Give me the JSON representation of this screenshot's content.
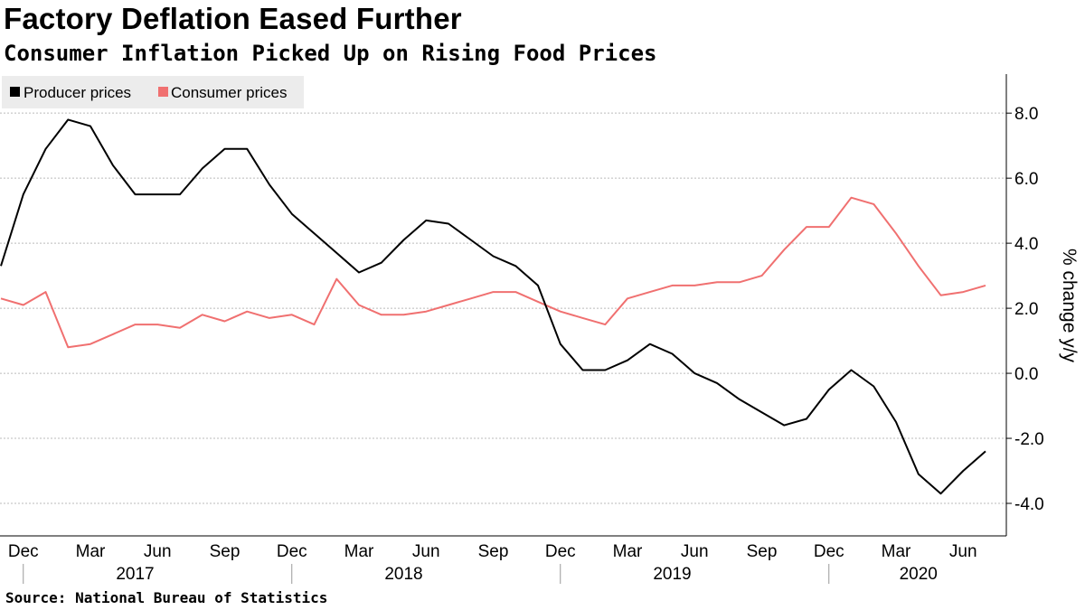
{
  "title": "Factory Deflation Eased Further",
  "subtitle": "Consumer Inflation Picked Up on Rising Food Prices",
  "source": "Source: National Bureau of Statistics",
  "colors": {
    "producer": "#000000",
    "consumer": "#f07070",
    "grid": "#bbbbbb"
  },
  "chart_data": {
    "type": "line",
    "title": "",
    "ylabel": "% change y/y",
    "ylim": [
      -5,
      9.2
    ],
    "yticks": [
      -4.0,
      -2.0,
      0.0,
      2.0,
      4.0,
      6.0,
      8.0
    ],
    "ytick_labels": [
      "-4.0",
      "-2.0",
      "0.0",
      "2.0",
      "4.0",
      "6.0",
      "8.0"
    ],
    "grid": true,
    "legend_position": "top-left",
    "x": [
      "2016-11",
      "2016-12",
      "2017-01",
      "2017-02",
      "2017-03",
      "2017-04",
      "2017-05",
      "2017-06",
      "2017-07",
      "2017-08",
      "2017-09",
      "2017-10",
      "2017-11",
      "2017-12",
      "2018-01",
      "2018-02",
      "2018-03",
      "2018-04",
      "2018-05",
      "2018-06",
      "2018-07",
      "2018-08",
      "2018-09",
      "2018-10",
      "2018-11",
      "2018-12",
      "2019-01",
      "2019-02",
      "2019-03",
      "2019-04",
      "2019-05",
      "2019-06",
      "2019-07",
      "2019-08",
      "2019-09",
      "2019-10",
      "2019-11",
      "2019-12",
      "2020-01",
      "2020-02",
      "2020-03",
      "2020-04",
      "2020-05",
      "2020-06",
      "2020-07"
    ],
    "month_ticks": [
      {
        "label": "Dec",
        "x": "2016-12"
      },
      {
        "label": "Mar",
        "x": "2017-03"
      },
      {
        "label": "Jun",
        "x": "2017-06"
      },
      {
        "label": "Sep",
        "x": "2017-09"
      },
      {
        "label": "Dec",
        "x": "2017-12"
      },
      {
        "label": "Mar",
        "x": "2018-03"
      },
      {
        "label": "Jun",
        "x": "2018-06"
      },
      {
        "label": "Sep",
        "x": "2018-09"
      },
      {
        "label": "Dec",
        "x": "2018-12"
      },
      {
        "label": "Mar",
        "x": "2019-03"
      },
      {
        "label": "Jun",
        "x": "2019-06"
      },
      {
        "label": "Sep",
        "x": "2019-09"
      },
      {
        "label": "Dec",
        "x": "2019-12"
      },
      {
        "label": "Mar",
        "x": "2020-03"
      },
      {
        "label": "Jun",
        "x": "2020-06"
      }
    ],
    "year_labels": [
      {
        "label": "2017",
        "x": "2017-05"
      },
      {
        "label": "2018",
        "x": "2018-05"
      },
      {
        "label": "2019",
        "x": "2019-05"
      },
      {
        "label": "2020",
        "x": "2020-04"
      }
    ],
    "year_separators": [
      "2016-12",
      "2017-12",
      "2018-12",
      "2019-12"
    ],
    "series": [
      {
        "name": "Producer prices",
        "color": "#000000",
        "values": [
          3.3,
          5.5,
          6.9,
          7.8,
          7.6,
          6.4,
          5.5,
          5.5,
          5.5,
          6.3,
          6.9,
          6.9,
          5.8,
          4.9,
          4.3,
          3.7,
          3.1,
          3.4,
          4.1,
          4.7,
          4.6,
          4.1,
          3.6,
          3.3,
          2.7,
          0.9,
          0.1,
          0.1,
          0.4,
          0.9,
          0.6,
          0.0,
          -0.3,
          -0.8,
          -1.2,
          -1.6,
          -1.4,
          -0.5,
          0.1,
          -0.4,
          -1.5,
          -3.1,
          -3.7,
          -3.0,
          -2.4
        ]
      },
      {
        "name": "Consumer prices",
        "color": "#f07070",
        "values": [
          2.3,
          2.1,
          2.5,
          0.8,
          0.9,
          1.2,
          1.5,
          1.5,
          1.4,
          1.8,
          1.6,
          1.9,
          1.7,
          1.8,
          1.5,
          2.9,
          2.1,
          1.8,
          1.8,
          1.9,
          2.1,
          2.3,
          2.5,
          2.5,
          2.2,
          1.9,
          1.7,
          1.5,
          2.3,
          2.5,
          2.7,
          2.7,
          2.8,
          2.8,
          3.0,
          3.8,
          4.5,
          4.5,
          5.4,
          5.2,
          4.3,
          3.3,
          2.4,
          2.5,
          2.7
        ]
      }
    ]
  }
}
